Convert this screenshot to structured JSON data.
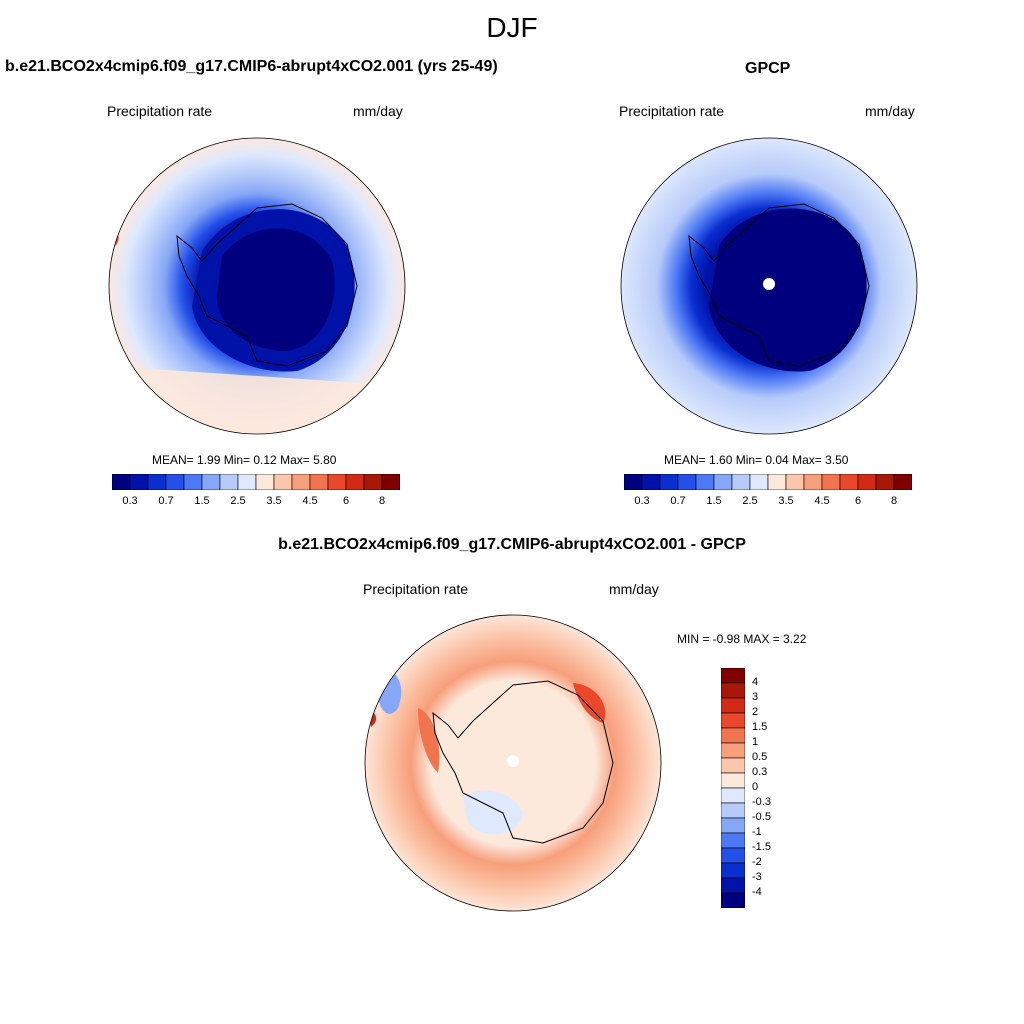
{
  "page": {
    "title": "DJF"
  },
  "palettes": {
    "abs": [
      "#00007f",
      "#0012a8",
      "#0a2fd0",
      "#2450ea",
      "#4d79f5",
      "#86a6f7",
      "#b7cbfa",
      "#dfe9fd",
      "#fde8dc",
      "#fbc6aa",
      "#f79e7a",
      "#f2744e",
      "#e9482a",
      "#d22a14",
      "#a81808",
      "#7f0000"
    ],
    "diff": [
      "#7f0000",
      "#a81808",
      "#d22a14",
      "#e9482a",
      "#f2744e",
      "#f79e7a",
      "#fbc6aa",
      "#fde8dc",
      "#dfe9fd",
      "#b7cbfa",
      "#86a6f7",
      "#4d79f5",
      "#2450ea",
      "#0a2fd0",
      "#0012a8",
      "#00007f"
    ]
  },
  "panels": {
    "model": {
      "title": "b.e21.BCO2x4cmip6.f09_g17.CMIP6-abrupt4xCO2.001 (yrs 25-49)",
      "variable": "Precipitation rate",
      "units": "mm/day",
      "stats_text": "MEAN=   1.99  Min=   0.12  Max=   5.80"
    },
    "obs": {
      "title": "GPCP",
      "variable": "Precipitation rate",
      "units": "mm/day",
      "stats_text": "MEAN=   1.60  Min=   0.04  Max=   3.50"
    },
    "diff": {
      "title": "b.e21.BCO2x4cmip6.f09_g17.CMIP6-abrupt4xCO2.001 - GPCP",
      "variable": "Precipitation rate",
      "units": "mm/day",
      "minmax_text": "MIN =  -0.98 MAX =   3.22"
    }
  },
  "colorbars": {
    "abs_labels": [
      "0.3",
      "0.7",
      "1.5",
      "2.5",
      "3.5",
      "4.5",
      "6",
      "8"
    ],
    "diff_labels": [
      "4",
      "3",
      "2",
      "1.5",
      "1",
      "0.5",
      "0.3",
      "0",
      "-0.3",
      "-0.5",
      "-1",
      "-1.5",
      "-2",
      "-3",
      "-4"
    ]
  }
}
